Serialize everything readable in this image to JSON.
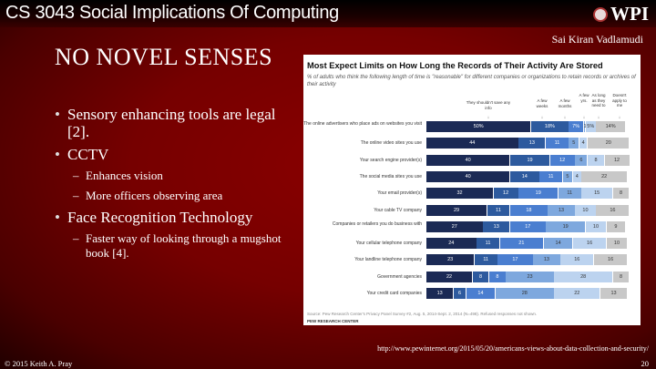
{
  "header": {
    "course": "CS 3043 Social Implications Of Computing",
    "logo": "WPI",
    "author": "Sai Kiran Vadlamudi"
  },
  "slide": {
    "title": "NO NOVEL SENSES",
    "bullets": [
      {
        "text": "Sensory enhancing tools are legal [2].",
        "sub": []
      },
      {
        "text": "CCTV",
        "sub": [
          "Enhances vision",
          "More officers observing area"
        ]
      },
      {
        "text": "Face Recognition Technology",
        "sub": [
          "Faster way of looking through a mugshot book [4]."
        ]
      }
    ]
  },
  "footer": {
    "url": "http://www.pewinternet.org/2015/05/20/americans-views-about-data-collection-and-security/",
    "copyright": "© 2015 Keith A. Pray",
    "page": "20"
  },
  "chart_data": {
    "type": "bar",
    "orientation": "horizontal",
    "stacked": true,
    "title": "Most Expect Limits on How Long the Records of Their Activity Are Stored",
    "subtitle": "% of adults who think the following length of time is \"reasonable\" for different companies or organizations to retain records or archives of their activity",
    "categories": [
      "The online advertisers who place ads on websites you visit",
      "The online video sites you use",
      "Your search engine provider(s)",
      "The social media sites you use",
      "Your email provider(s)",
      "Your cable TV company",
      "Companies or retailers you do business with",
      "Your cellular telephone company",
      "Your landline telephone company",
      "Government agencies",
      "Your credit card companies"
    ],
    "series": [
      {
        "name": "They shouldn't save any info",
        "color": "#1b2a55",
        "values": [
          50,
          44,
          40,
          40,
          32,
          29,
          27,
          24,
          23,
          22,
          13
        ]
      },
      {
        "name": "A few weeks",
        "color": "#2d5a9e",
        "values": [
          18,
          13,
          19,
          14,
          12,
          11,
          13,
          11,
          11,
          8,
          6
        ]
      },
      {
        "name": "A few months",
        "color": "#4a7ed0",
        "values": [
          7,
          11,
          12,
          11,
          19,
          18,
          17,
          21,
          17,
          8,
          14
        ]
      },
      {
        "name": "A few yrs.",
        "color": "#7ea8de",
        "values": [
          1,
          5,
          6,
          5,
          11,
          13,
          19,
          14,
          13,
          23,
          28
        ]
      },
      {
        "name": "As long as they need to",
        "color": "#bcd3ef",
        "values": [
          5,
          4,
          8,
          4,
          15,
          10,
          10,
          16,
          16,
          28,
          22
        ]
      },
      {
        "name": "Doesn't apply to me",
        "color": "#c8c8c8",
        "values": [
          14,
          20,
          12,
          22,
          8,
          16,
          9,
          10,
          16,
          8,
          13
        ]
      }
    ],
    "first_row_suffix": "%",
    "source": "Source: Pew Research Center's Privacy Panel Survey #2, Aug. 5, 2014-Sept. 2, 2014 (N=498). Refused responses not shown.",
    "brand": "PEW RESEARCH CENTER"
  }
}
